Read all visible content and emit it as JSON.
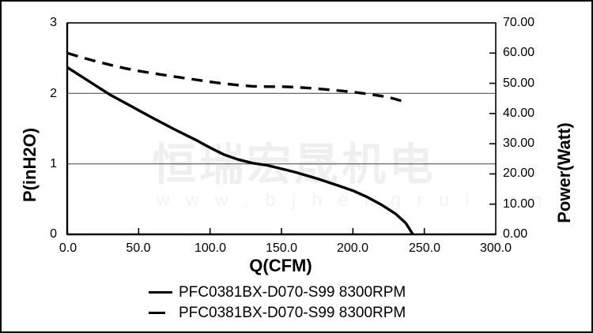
{
  "watermark": {
    "brand": "恒瑞宏晟机电",
    "url": "w w w . b j h e n g r u i . c n"
  },
  "axes": {
    "left": {
      "title": "P(inH2O)",
      "ticks": [
        "3",
        "2",
        "1",
        "0"
      ]
    },
    "right": {
      "title": "Power(Watt)",
      "ticks": [
        "70.00",
        "60.00",
        "50.00",
        "40.00",
        "30.00",
        "20.00",
        "10.00",
        "0.00"
      ]
    },
    "x": {
      "title": "Q(CFM)",
      "ticks": [
        "0.0",
        "50.0",
        "100.0",
        "150.0",
        "200.0",
        "250.0",
        "300.0"
      ]
    }
  },
  "legend": {
    "items": [
      {
        "label": "PFC0381BX-D070-S99 8300RPM",
        "style": "solid"
      },
      {
        "label": "PFC0381BX-D070-S99 8300RPM",
        "style": "dashed"
      }
    ]
  },
  "colors": {
    "curve": "#000000",
    "axis": "#000000",
    "grid": "#555555",
    "watermark": "#efefef"
  },
  "chart_data": {
    "type": "line",
    "title": "",
    "xlabel": "Q(CFM)",
    "ylabel_left": "P(inH2O)",
    "ylabel_right": "Power(Watt)",
    "xlim": [
      0,
      300
    ],
    "ylim_left": [
      0,
      3
    ],
    "ylim_right": [
      0,
      70
    ],
    "x_tick_values": [
      0,
      50,
      100,
      150,
      200,
      250,
      300
    ],
    "left_tick_values": [
      3,
      2,
      1,
      0
    ],
    "right_tick_values": [
      70,
      60,
      50,
      40,
      30,
      20,
      10,
      0
    ],
    "gridlines_left": [
      1,
      2
    ],
    "grid": "horizontal-only",
    "legend_position": "bottom",
    "series": [
      {
        "name": "PFC0381BX-D070-S99 8300RPM",
        "axis": "left",
        "line": "solid",
        "unit": "inH2O",
        "points": [
          [
            0,
            2.37
          ],
          [
            10,
            2.24
          ],
          [
            20,
            2.11
          ],
          [
            30,
            1.98
          ],
          [
            40,
            1.87
          ],
          [
            50,
            1.76
          ],
          [
            60,
            1.65
          ],
          [
            75,
            1.49
          ],
          [
            90,
            1.34
          ],
          [
            100,
            1.23
          ],
          [
            110,
            1.13
          ],
          [
            120,
            1.06
          ],
          [
            130,
            1.01
          ],
          [
            140,
            0.98
          ],
          [
            150,
            0.93
          ],
          [
            160,
            0.88
          ],
          [
            175,
            0.79
          ],
          [
            190,
            0.69
          ],
          [
            200,
            0.62
          ],
          [
            210,
            0.53
          ],
          [
            220,
            0.42
          ],
          [
            230,
            0.29
          ],
          [
            237,
            0.16
          ],
          [
            242,
            0.0
          ]
        ]
      },
      {
        "name": "PFC0381BX-D070-S99 8300RPM",
        "axis": "right",
        "line": "dashed",
        "unit": "Watt",
        "points": [
          [
            0,
            60
          ],
          [
            10,
            58.6
          ],
          [
            20,
            57.3
          ],
          [
            30,
            56.1
          ],
          [
            40,
            55.0
          ],
          [
            50,
            54.1
          ],
          [
            60,
            53.3
          ],
          [
            75,
            52.2
          ],
          [
            90,
            51.2
          ],
          [
            100,
            50.5
          ],
          [
            110,
            49.9
          ],
          [
            120,
            49.4
          ],
          [
            130,
            49.0
          ],
          [
            140,
            48.9
          ],
          [
            150,
            48.9
          ],
          [
            160,
            48.7
          ],
          [
            170,
            48.4
          ],
          [
            180,
            48.0
          ],
          [
            190,
            47.6
          ],
          [
            200,
            47.1
          ],
          [
            210,
            46.5
          ],
          [
            220,
            45.8
          ],
          [
            228,
            45.0
          ],
          [
            236,
            43.9
          ]
        ]
      }
    ]
  }
}
